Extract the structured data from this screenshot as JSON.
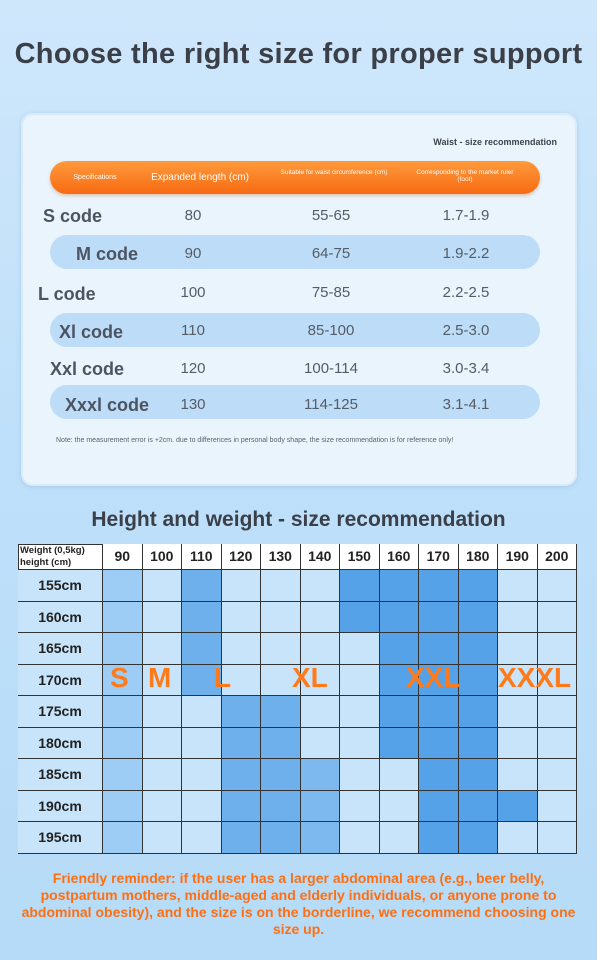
{
  "title": "Choose the right size for proper support",
  "waist_table": {
    "title": "Waist - size recommendation",
    "headers": [
      "Specifications",
      "Expanded length (cm)",
      "Suitable for waist circumference (cm)",
      "Corresponding to the market ruler (foot)"
    ],
    "rows": [
      {
        "code": "S code",
        "length": "80",
        "waist": "55-65",
        "ruler": "1.7-1.9"
      },
      {
        "code": "M code",
        "length": "90",
        "waist": "64-75",
        "ruler": "1.9-2.2"
      },
      {
        "code": "L code",
        "length": "100",
        "waist": "75-85",
        "ruler": "2.2-2.5"
      },
      {
        "code": "Xl code",
        "length": "110",
        "waist": "85-100",
        "ruler": "2.5-3.0"
      },
      {
        "code": "Xxl code",
        "length": "120",
        "waist": "100-114",
        "ruler": "3.0-3.4"
      },
      {
        "code": "Xxxl code",
        "length": "130",
        "waist": "114-125",
        "ruler": "3.1-4.1"
      }
    ],
    "note": "Note: the measurement error is +2cm. due to differences in personal body shape, the size recommendation is for reference only!"
  },
  "hw_table": {
    "title": "Height and weight - size recommendation",
    "corner_top": "Weight (0,5kg)",
    "corner_bottom": "height (cm)",
    "weights": [
      "90",
      "100",
      "110",
      "120",
      "130",
      "140",
      "150",
      "160",
      "170",
      "180",
      "190",
      "200"
    ],
    "heights": [
      "155cm",
      "160cm",
      "165cm",
      "170cm",
      "175cm",
      "180cm",
      "185cm",
      "190cm",
      "195cm"
    ],
    "size_labels": [
      "S",
      "M",
      "L",
      "XL",
      "XXL",
      "XXXL"
    ],
    "colors": [
      "#9dcdf5",
      "#c8e4fb",
      "#7db9ee",
      "#6eb0ec",
      "#55a2e8"
    ],
    "cell_shades": [
      [
        0,
        1,
        3,
        1,
        1,
        1,
        4,
        4,
        4,
        4,
        1,
        1
      ],
      [
        0,
        1,
        3,
        1,
        1,
        1,
        4,
        4,
        4,
        4,
        1,
        1
      ],
      [
        0,
        1,
        3,
        1,
        1,
        1,
        1,
        4,
        4,
        4,
        1,
        1
      ],
      [
        0,
        1,
        3,
        1,
        1,
        1,
        1,
        4,
        4,
        4,
        1,
        1
      ],
      [
        0,
        1,
        1,
        3,
        3,
        1,
        1,
        4,
        4,
        4,
        1,
        1
      ],
      [
        0,
        1,
        1,
        3,
        3,
        1,
        1,
        4,
        4,
        4,
        1,
        1
      ],
      [
        0,
        1,
        1,
        3,
        3,
        2,
        1,
        1,
        4,
        4,
        1,
        1
      ],
      [
        0,
        1,
        1,
        3,
        3,
        2,
        1,
        1,
        4,
        4,
        4,
        1
      ],
      [
        0,
        1,
        1,
        3,
        3,
        2,
        1,
        1,
        4,
        4,
        1,
        1
      ]
    ]
  },
  "reminder": "Friendly reminder: if the user has a larger abdominal area (e.g., beer belly, postpartum mothers, middle-aged and elderly individuals, or anyone prone to abdominal obesity), and the size is on the borderline, we recommend choosing one size up."
}
